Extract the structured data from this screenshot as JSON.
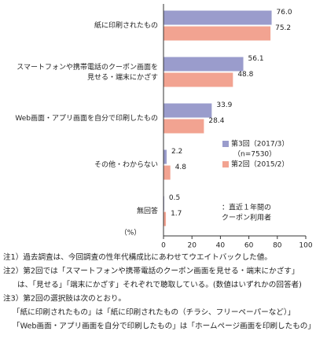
{
  "chart_data": {
    "type": "hbar",
    "categories": [
      "紙に印刷されたもの",
      "スマートフォンや携帯電話のクーポン画面を\n見せる・端末にかざす",
      "Web画面・アプリ画面を自分で印刷したもの",
      "その他・わからない",
      "無回答"
    ],
    "series": [
      {
        "name": "第3回（2017/3）",
        "color": "#9a9ccc",
        "values": [
          76.0,
          56.1,
          33.9,
          2.2,
          0.5
        ],
        "value_labels": [
          "76.0",
          "56.1",
          "33.9",
          "2.2",
          "0.5"
        ]
      },
      {
        "name": "第2回（2015/2）",
        "color": "#f2a391",
        "values": [
          75.2,
          48.8,
          28.4,
          4.8,
          1.7
        ],
        "value_labels": [
          "75.2",
          "48.8",
          "28.4",
          "4.8",
          "1.7"
        ]
      }
    ],
    "legend_note": "（n=7530）",
    "annotation": "：直近１年間の\nクーポン利用者",
    "xlabel": "（%）",
    "xlim": [
      0,
      100
    ],
    "xticks": [
      0,
      20,
      40,
      60,
      80,
      100
    ],
    "notes": [
      "注1）過去調査は、今回調査の性年代構成比にあわせてウエイトバックした値。",
      "注2）第2回では「スマートフォンや携帯電話のクーポン画面を見せる・端末にかざす」",
      "は、「見せる」「端末にかざす」それぞれで聴取している。(数値はいずれかの回答者)",
      "注3）第2回の選択肢は次のとおり。",
      "「紙に印刷されたもの」は「紙に印刷されたもの（チラシ、フリーペーパーなど）」",
      "「Web画面・アプリ画面を自分で印刷したもの」は「ホームページ画面を印刷したもの」"
    ]
  }
}
